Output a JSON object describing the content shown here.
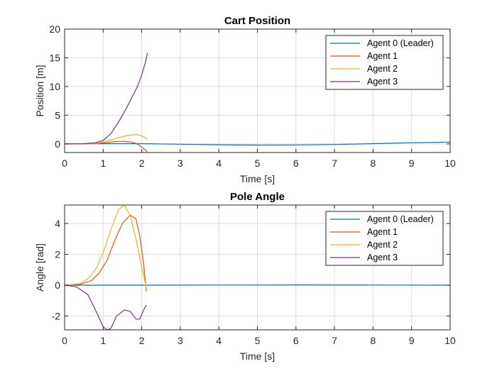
{
  "chart_data": [
    {
      "type": "line",
      "title": "Cart Position",
      "xlabel": "Time [s]",
      "ylabel": "Position [m]",
      "xlim": [
        0,
        10
      ],
      "ylim": [
        -1.5,
        20
      ],
      "xticks": [
        0,
        1,
        2,
        3,
        4,
        5,
        6,
        7,
        8,
        9,
        10
      ],
      "yticks": [
        0,
        5,
        10,
        15,
        20
      ],
      "grid": true,
      "legend_position": "top-right",
      "series": [
        {
          "name": "Agent 0 (Leader)",
          "color": "#0072BD",
          "x": [
            0,
            1,
            2,
            3,
            4,
            5,
            6,
            7,
            8,
            9,
            10
          ],
          "y": [
            0,
            0.05,
            0.05,
            -0.05,
            -0.15,
            -0.2,
            -0.18,
            -0.1,
            0.05,
            0.2,
            0.3
          ]
        },
        {
          "name": "Agent 1",
          "color": "#D95319",
          "x": [
            0,
            0.5,
            0.9,
            1.1,
            1.3,
            1.5,
            1.7,
            1.85,
            2.0,
            2.1,
            2.15
          ],
          "y": [
            0,
            0.02,
            0.1,
            0.25,
            0.4,
            0.45,
            0.35,
            0.1,
            -0.5,
            -1.1,
            -1.5
          ]
        },
        {
          "name": "Agent 2",
          "color": "#EDB120",
          "x": [
            0,
            0.5,
            0.8,
            1.0,
            1.2,
            1.4,
            1.6,
            1.8,
            1.9,
            2.0,
            2.1,
            2.15
          ],
          "y": [
            0,
            0.02,
            0.1,
            0.3,
            0.7,
            1.1,
            1.4,
            1.6,
            1.6,
            1.4,
            1.0,
            0.8
          ]
        },
        {
          "name": "Agent 3",
          "color": "#7E2F8E",
          "x": [
            0,
            0.5,
            0.8,
            1.0,
            1.2,
            1.4,
            1.6,
            1.8,
            1.9,
            2.0,
            2.1,
            2.15
          ],
          "y": [
            0,
            0.05,
            0.2,
            0.6,
            1.8,
            3.8,
            6.2,
            8.8,
            10.2,
            12.0,
            14.3,
            15.9
          ]
        }
      ]
    },
    {
      "type": "line",
      "title": "Pole Angle",
      "xlabel": "Time [s]",
      "ylabel": "Angle [rad]",
      "xlim": [
        0,
        10
      ],
      "ylim": [
        -2.9,
        5.2
      ],
      "xticks": [
        0,
        1,
        2,
        3,
        4,
        5,
        6,
        7,
        8,
        9,
        10
      ],
      "yticks": [
        -2,
        0,
        2,
        4
      ],
      "grid": true,
      "legend_position": "top-right",
      "series": [
        {
          "name": "Agent 0 (Leader)",
          "color": "#0072BD",
          "x": [
            0,
            2,
            4,
            6,
            8,
            10
          ],
          "y": [
            0,
            0,
            0.01,
            0.02,
            0.01,
            0
          ]
        },
        {
          "name": "Agent 1",
          "color": "#D95319",
          "x": [
            0,
            0.4,
            0.7,
            0.9,
            1.1,
            1.3,
            1.5,
            1.7,
            1.85,
            1.95,
            2.05,
            2.12
          ],
          "y": [
            0,
            0.05,
            0.3,
            0.8,
            1.6,
            2.9,
            4.0,
            4.55,
            4.3,
            3.2,
            1.4,
            -0.4
          ]
        },
        {
          "name": "Agent 2",
          "color": "#EDB120",
          "x": [
            0,
            0.4,
            0.6,
            0.8,
            1.0,
            1.2,
            1.4,
            1.55,
            1.7,
            1.85,
            2.0,
            2.12
          ],
          "y": [
            0,
            0.1,
            0.4,
            1.0,
            2.1,
            3.6,
            4.9,
            5.2,
            4.5,
            3.0,
            1.2,
            -0.2
          ]
        },
        {
          "name": "Agent 3",
          "color": "#7E2F8E",
          "x": [
            0,
            0.3,
            0.6,
            0.8,
            1.0,
            1.1,
            1.2,
            1.35,
            1.55,
            1.7,
            1.85,
            1.95,
            2.05,
            2.12
          ],
          "y": [
            0,
            -0.1,
            -0.6,
            -1.6,
            -2.7,
            -2.9,
            -2.8,
            -2.0,
            -1.6,
            -1.7,
            -2.2,
            -2.2,
            -1.6,
            -1.3
          ]
        }
      ]
    }
  ]
}
